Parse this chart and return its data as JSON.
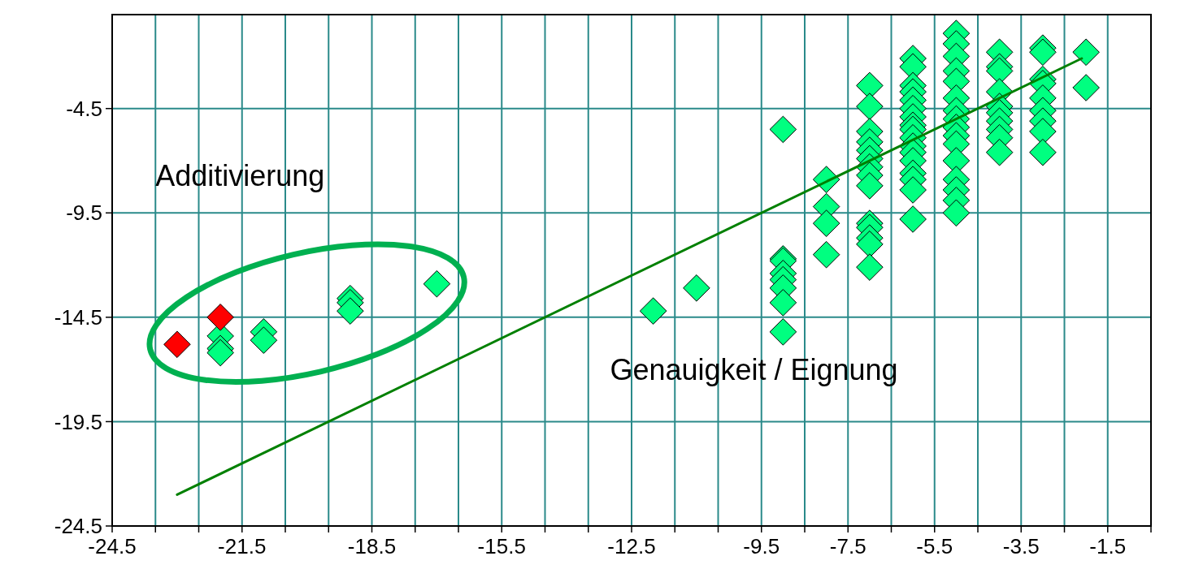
{
  "chart_data": {
    "type": "scatter",
    "marker": "diamond",
    "grid": true,
    "xlim": [
      -24.5,
      -0.5
    ],
    "ylim": [
      -24.5,
      0
    ],
    "xticks": [
      -24.5,
      {
        "value": -23.5,
        "label": null
      },
      {
        "value": -22.5,
        "label": null
      },
      -21.5,
      {
        "value": -20.5,
        "label": null
      },
      {
        "value": -19.5,
        "label": null
      },
      -18.5,
      {
        "value": -17.5,
        "label": null
      },
      {
        "value": -16.5,
        "label": null
      },
      -15.5,
      {
        "value": -14.5,
        "label": null
      },
      {
        "value": -13.5,
        "label": null
      },
      -12.5,
      {
        "value": -11.5,
        "label": null
      },
      {
        "value": -10.5,
        "label": null
      },
      -9.5,
      {
        "value": -8.5,
        "label": null
      },
      -7.5,
      {
        "value": -6.5,
        "label": null
      },
      -5.5,
      {
        "value": -4.5,
        "label": null
      },
      -3.5,
      {
        "value": -2.5,
        "label": null
      },
      -1.5,
      {
        "value": -0.5,
        "label": null
      }
    ],
    "yticks": [
      -24.5,
      -19.5,
      -14.5,
      -9.5,
      -4.5
    ],
    "annotations": [
      "Additivierung",
      "Genauigkeit / Eignung"
    ],
    "series": [
      {
        "color": "#00ff80",
        "x": [
          -22,
          -22,
          -22,
          -21,
          -21,
          -19,
          -19,
          -19,
          -17,
          -12,
          -11,
          -9,
          -9,
          -9,
          -9,
          -9,
          -9,
          -9,
          -9,
          -8,
          -8,
          -8,
          -8,
          -7,
          -7,
          -7,
          -7,
          -7,
          -7,
          -7,
          -7,
          -7,
          -7,
          -7,
          -7,
          -7,
          -7,
          -6,
          -6,
          -6,
          -6,
          -6,
          -6,
          -6,
          -6,
          -6,
          -6,
          -6,
          -6,
          -6,
          -6,
          -6,
          -6,
          -6,
          -5,
          -5,
          -5,
          -5,
          -5,
          -5,
          -5,
          -5,
          -5,
          -5,
          -5,
          -5,
          -5,
          -5,
          -5,
          -5,
          -4,
          -4,
          -4,
          -4,
          -4,
          -4,
          -4,
          -4,
          -4,
          -4,
          -3,
          -3,
          -3,
          -3,
          -3,
          -3,
          -3,
          -3,
          -3,
          -2,
          -2
        ],
        "values": [
          -15.4,
          -16.0,
          -16.2,
          -15.2,
          -15.6,
          -13.6,
          -13.8,
          -14.2,
          -12.9,
          -14.2,
          -13.1,
          -5.5,
          -11.7,
          -11.8,
          -12.4,
          -12.7,
          -13.1,
          -13.8,
          -15.2,
          -7.9,
          -9.2,
          -10.0,
          -11.5,
          -3.4,
          -4.4,
          -5.6,
          -6.1,
          -6.5,
          -6.9,
          -7.3,
          -7.7,
          -8.2,
          -10.0,
          -10.2,
          -10.7,
          -11.0,
          -12.1,
          -2.1,
          -2.5,
          -3.4,
          -3.7,
          -4.1,
          -4.5,
          -4.9,
          -5.3,
          -5.5,
          -5.9,
          -6.3,
          -6.6,
          -7.0,
          -7.6,
          -7.9,
          -8.4,
          -9.8,
          -0.9,
          -1.4,
          -2.0,
          -2.7,
          -3.2,
          -4.0,
          -4.6,
          -5.0,
          -5.4,
          -5.8,
          -6.2,
          -7.0,
          -7.9,
          -8.4,
          -8.9,
          -9.5,
          -1.8,
          -2.5,
          -2.7,
          -3.7,
          -4.4,
          -4.7,
          -5.1,
          -5.5,
          -5.9,
          -6.6,
          -1.6,
          -1.8,
          -3.1,
          -3.3,
          -4.0,
          -4.6,
          -5.1,
          -5.6,
          -6.6,
          -1.8,
          -3.5
        ]
      },
      {
        "color": "#ff0000",
        "x": [
          -23,
          -22
        ],
        "values": [
          -15.8,
          -14.5
        ]
      },
      {
        "type": "line",
        "color": "#008000",
        "marker": "none",
        "x": [
          -23,
          -2.1
        ],
        "values": [
          -23,
          -2.1
        ]
      }
    ]
  }
}
